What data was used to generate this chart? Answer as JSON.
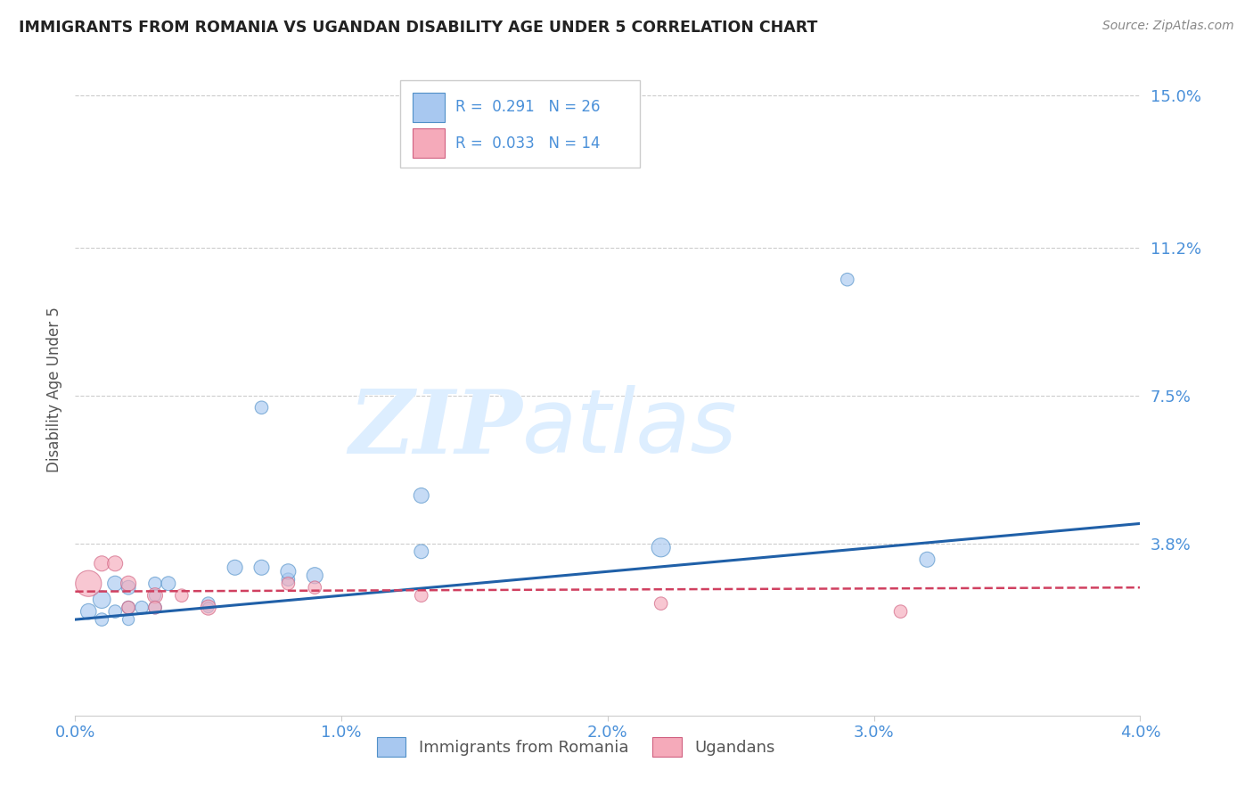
{
  "title": "IMMIGRANTS FROM ROMANIA VS UGANDAN DISABILITY AGE UNDER 5 CORRELATION CHART",
  "source": "Source: ZipAtlas.com",
  "ylabel": "Disability Age Under 5",
  "ytick_vals": [
    0.0,
    0.038,
    0.075,
    0.112,
    0.15
  ],
  "ytick_labels": [
    "",
    "3.8%",
    "7.5%",
    "11.2%",
    "15.0%"
  ],
  "xtick_vals": [
    0.0,
    0.01,
    0.02,
    0.03,
    0.04
  ],
  "xtick_labels": [
    "0.0%",
    "1.0%",
    "2.0%",
    "3.0%",
    "4.0%"
  ],
  "watermark_zip": "ZIP",
  "watermark_atlas": "atlas",
  "legend_r_blue": "R =  0.291",
  "legend_n_blue": "N = 26",
  "legend_r_pink": "R =  0.033",
  "legend_n_pink": "N = 14",
  "legend_label_blue": "Immigrants from Romania",
  "legend_label_pink": "Ugandans",
  "blue_scatter_x": [
    0.0005,
    0.001,
    0.001,
    0.0015,
    0.0015,
    0.002,
    0.002,
    0.002,
    0.0025,
    0.003,
    0.003,
    0.003,
    0.0035,
    0.005,
    0.005,
    0.006,
    0.007,
    0.008,
    0.008,
    0.009,
    0.007,
    0.013,
    0.013,
    0.022,
    0.029,
    0.032
  ],
  "blue_scatter_y": [
    0.021,
    0.019,
    0.024,
    0.021,
    0.028,
    0.019,
    0.022,
    0.027,
    0.022,
    0.022,
    0.025,
    0.028,
    0.028,
    0.023,
    0.022,
    0.032,
    0.032,
    0.029,
    0.031,
    0.03,
    0.072,
    0.05,
    0.036,
    0.037,
    0.104,
    0.034
  ],
  "blue_scatter_sizes": [
    80,
    55,
    100,
    55,
    75,
    45,
    55,
    65,
    55,
    55,
    45,
    55,
    65,
    55,
    38,
    75,
    75,
    55,
    75,
    85,
    55,
    75,
    65,
    115,
    55,
    75
  ],
  "pink_scatter_x": [
    0.0005,
    0.001,
    0.0015,
    0.002,
    0.002,
    0.003,
    0.003,
    0.004,
    0.005,
    0.008,
    0.009,
    0.013,
    0.022,
    0.031
  ],
  "pink_scatter_y": [
    0.028,
    0.033,
    0.033,
    0.028,
    0.022,
    0.025,
    0.022,
    0.025,
    0.022,
    0.028,
    0.027,
    0.025,
    0.023,
    0.021
  ],
  "pink_scatter_sizes": [
    220,
    75,
    75,
    75,
    55,
    75,
    55,
    55,
    75,
    55,
    55,
    55,
    55,
    55
  ],
  "blue_line_x": [
    0.0,
    0.04
  ],
  "blue_line_y": [
    0.019,
    0.043
  ],
  "pink_line_x": [
    0.0,
    0.04
  ],
  "pink_line_y": [
    0.026,
    0.027
  ],
  "bg_color": "#ffffff",
  "grid_color": "#cccccc",
  "blue_fill": "#a8c8f0",
  "blue_edge": "#5090c8",
  "pink_fill": "#f5aaba",
  "pink_edge": "#d06080",
  "blue_line_color": "#2060a8",
  "pink_line_color": "#d04060",
  "title_color": "#222222",
  "axis_blue": "#4a90d9",
  "ylabel_color": "#555555",
  "source_color": "#888888",
  "watermark_color": "#ddeeff",
  "xlim": [
    0.0,
    0.04
  ],
  "ylim": [
    -0.005,
    0.158
  ]
}
